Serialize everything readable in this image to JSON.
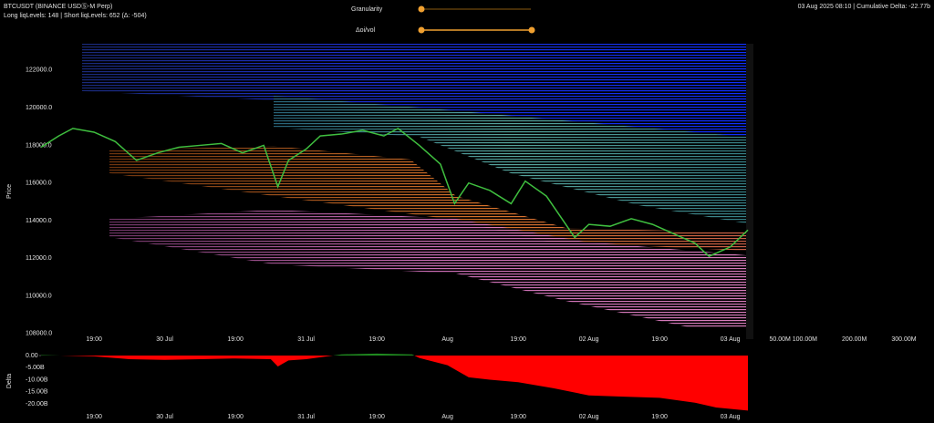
{
  "header": {
    "title": "BTCUSDT (BINANCE USDⓈ-M Perp)",
    "subtitle": "Long liqLevels: 148 | Short liqLevels: 652 (Δ: -504)",
    "status": "03 Aug 2025 08:10 | Cumulative Delta: -22.77b"
  },
  "controls": [
    {
      "label": "Granularity"
    },
    {
      "label": "Δoi/vol"
    }
  ],
  "chart_data": [
    {
      "type": "line",
      "ylabel": "Price",
      "color": "#3fbf3f",
      "x": [
        -0.75,
        -0.5,
        -0.3,
        0,
        0.3,
        0.6,
        0.9,
        1.2,
        1.5,
        1.8,
        2.1,
        2.4,
        2.6,
        2.75,
        3.0,
        3.2,
        3.5,
        3.8,
        4.1,
        4.3,
        4.6,
        4.9,
        5.1,
        5.3,
        5.6,
        5.9,
        6.1,
        6.4,
        6.6,
        6.8,
        7.0,
        7.3,
        7.6,
        7.9,
        8.2,
        8.5,
        8.7,
        9.0,
        9.25
      ],
      "values": [
        117900,
        118500,
        118900,
        118700,
        118200,
        117200,
        117600,
        117900,
        118000,
        118100,
        117600,
        118000,
        115800,
        117200,
        117800,
        118500,
        118600,
        118800,
        118500,
        118900,
        118000,
        117000,
        114900,
        116000,
        115600,
        114900,
        116100,
        115300,
        114200,
        113100,
        113800,
        113700,
        114100,
        113800,
        113300,
        112800,
        112100,
        112600,
        113500
      ],
      "xlim": [
        -0.75,
        9.25
      ],
      "xticks": [
        {
          "value": 0,
          "label": "19:00"
        },
        {
          "value": 1,
          "label": "30 Jul"
        },
        {
          "value": 2,
          "label": "19:00"
        },
        {
          "value": 3,
          "label": "31 Jul"
        },
        {
          "value": 4,
          "label": "19:00"
        },
        {
          "value": 5,
          "label": "Aug"
        },
        {
          "value": 6,
          "label": "19:00"
        },
        {
          "value": 7,
          "label": "02 Aug"
        },
        {
          "value": 8,
          "label": "19:00"
        },
        {
          "value": 9,
          "label": "03 Aug"
        }
      ],
      "ylim": [
        107700,
        123400
      ],
      "yticks": [
        {
          "value": 108000,
          "label": "108000.0"
        },
        {
          "value": 110000,
          "label": "110000.0"
        },
        {
          "value": 112000,
          "label": "112000.0"
        },
        {
          "value": 114000,
          "label": "114000.0"
        },
        {
          "value": 116000,
          "label": "116000.0"
        },
        {
          "value": 118000,
          "label": "118000.0"
        },
        {
          "value": 120000,
          "label": "120000.0"
        },
        {
          "value": 122000,
          "label": "122000.0"
        }
      ],
      "volume_xlim": [
        0,
        335
      ],
      "volume_xticks": [
        {
          "value": 50,
          "label": "50.00M"
        },
        {
          "value": 100,
          "label": "100.00M"
        },
        {
          "value": 200,
          "label": "200.00M"
        },
        {
          "value": 300,
          "label": "300.00M"
        }
      ]
    },
    {
      "type": "area",
      "ylabel": "Delta",
      "positive_color": "#1f8a1f",
      "negative_color": "#ff0000",
      "x": [
        -0.75,
        0,
        0.5,
        1,
        1.5,
        2,
        2.5,
        2.6,
        2.75,
        3,
        3.5,
        4,
        4.5,
        4.6,
        5,
        5.3,
        5.6,
        6,
        6.5,
        7,
        7.5,
        8,
        8.5,
        8.8,
        9.25
      ],
      "values": [
        0.2,
        -0.3,
        -1.5,
        -1.8,
        -1.5,
        -1.2,
        -1.5,
        -4.5,
        -2.0,
        -1.5,
        0.5,
        0.8,
        0.5,
        -1.0,
        -4.0,
        -9.0,
        -10.0,
        -11.0,
        -13.5,
        -16.5,
        -17.0,
        -17.5,
        -19.5,
        -21.5,
        -22.77
      ],
      "xlim": [
        -0.75,
        9.25
      ],
      "ylim": [
        -23,
        1.9
      ],
      "yticks": [
        {
          "value": 0,
          "label": "0.00"
        },
        {
          "value": -5,
          "label": "-5.00B"
        },
        {
          "value": -10,
          "label": "-10.00B"
        },
        {
          "value": -15,
          "label": "-15.00B"
        },
        {
          "value": -20,
          "label": "-20.00B"
        }
      ]
    }
  ]
}
